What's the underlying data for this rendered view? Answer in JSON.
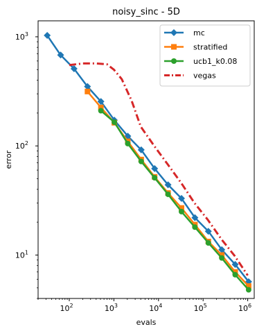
{
  "chart_data": {
    "type": "line",
    "title": "noisy_sinc - 5D",
    "xlabel": "evals",
    "ylabel": "error",
    "xscale": "log",
    "yscale": "log",
    "xlim": [
      20,
      1400000
    ],
    "ylim": [
      4,
      1400
    ],
    "grid": false,
    "legend_position": "top-right",
    "x_ticks": [
      {
        "value": 100,
        "label": "10",
        "exp": "2"
      },
      {
        "value": 1000,
        "label": "10",
        "exp": "3"
      },
      {
        "value": 10000,
        "label": "10",
        "exp": "4"
      },
      {
        "value": 100000,
        "label": "10",
        "exp": "5"
      },
      {
        "value": 1000000,
        "label": "10",
        "exp": "6"
      }
    ],
    "y_ticks": [
      {
        "value": 10,
        "label": "10",
        "exp": "1"
      },
      {
        "value": 100,
        "label": "10",
        "exp": "2"
      },
      {
        "value": 1000,
        "label": "10",
        "exp": "3"
      }
    ],
    "series": [
      {
        "name": "mc",
        "color": "#1f77b4",
        "marker": "diamond",
        "dash": "",
        "x": [
          32,
          64,
          128,
          256,
          512,
          1024,
          2048,
          4096,
          8192,
          16384,
          32768,
          65536,
          131072,
          262144,
          524288,
          1048576
        ],
        "y": [
          1030,
          680,
          510,
          350,
          255,
          172,
          123,
          92,
          62,
          44,
          33,
          22,
          16.5,
          11.2,
          8.2,
          5.7
        ]
      },
      {
        "name": "stratified",
        "color": "#ff7f0e",
        "marker": "square",
        "dash": "",
        "x": [
          256,
          512,
          1024,
          2048,
          4096,
          8192,
          16384,
          32768,
          65536,
          131072,
          262144,
          524288,
          1048576
        ],
        "y": [
          315,
          225,
          163,
          110,
          75,
          52,
          37,
          27,
          19,
          13.3,
          10,
          7,
          5.2
        ]
      },
      {
        "name": "ucb1_k0.08",
        "color": "#2ca02c",
        "marker": "circle",
        "dash": "",
        "x": [
          512,
          1024,
          2048,
          4096,
          8192,
          16384,
          32768,
          65536,
          131072,
          262144,
          524288,
          1048576
        ],
        "y": [
          210,
          165,
          105,
          72,
          51,
          36,
          25,
          18,
          12.9,
          9.4,
          6.6,
          4.8
        ]
      },
      {
        "name": "vegas",
        "color": "#d62728",
        "marker": "none",
        "dash": "10,4,2,4",
        "x": [
          100,
          200,
          400,
          700,
          1000,
          1500,
          2500,
          4000,
          8000,
          16000,
          32000,
          64000,
          128000,
          256000,
          512000,
          1000000
        ],
        "y": [
          550,
          570,
          570,
          560,
          500,
          410,
          260,
          150,
          100,
          68,
          46,
          30,
          21,
          14,
          9.8,
          6.5
        ]
      }
    ]
  }
}
